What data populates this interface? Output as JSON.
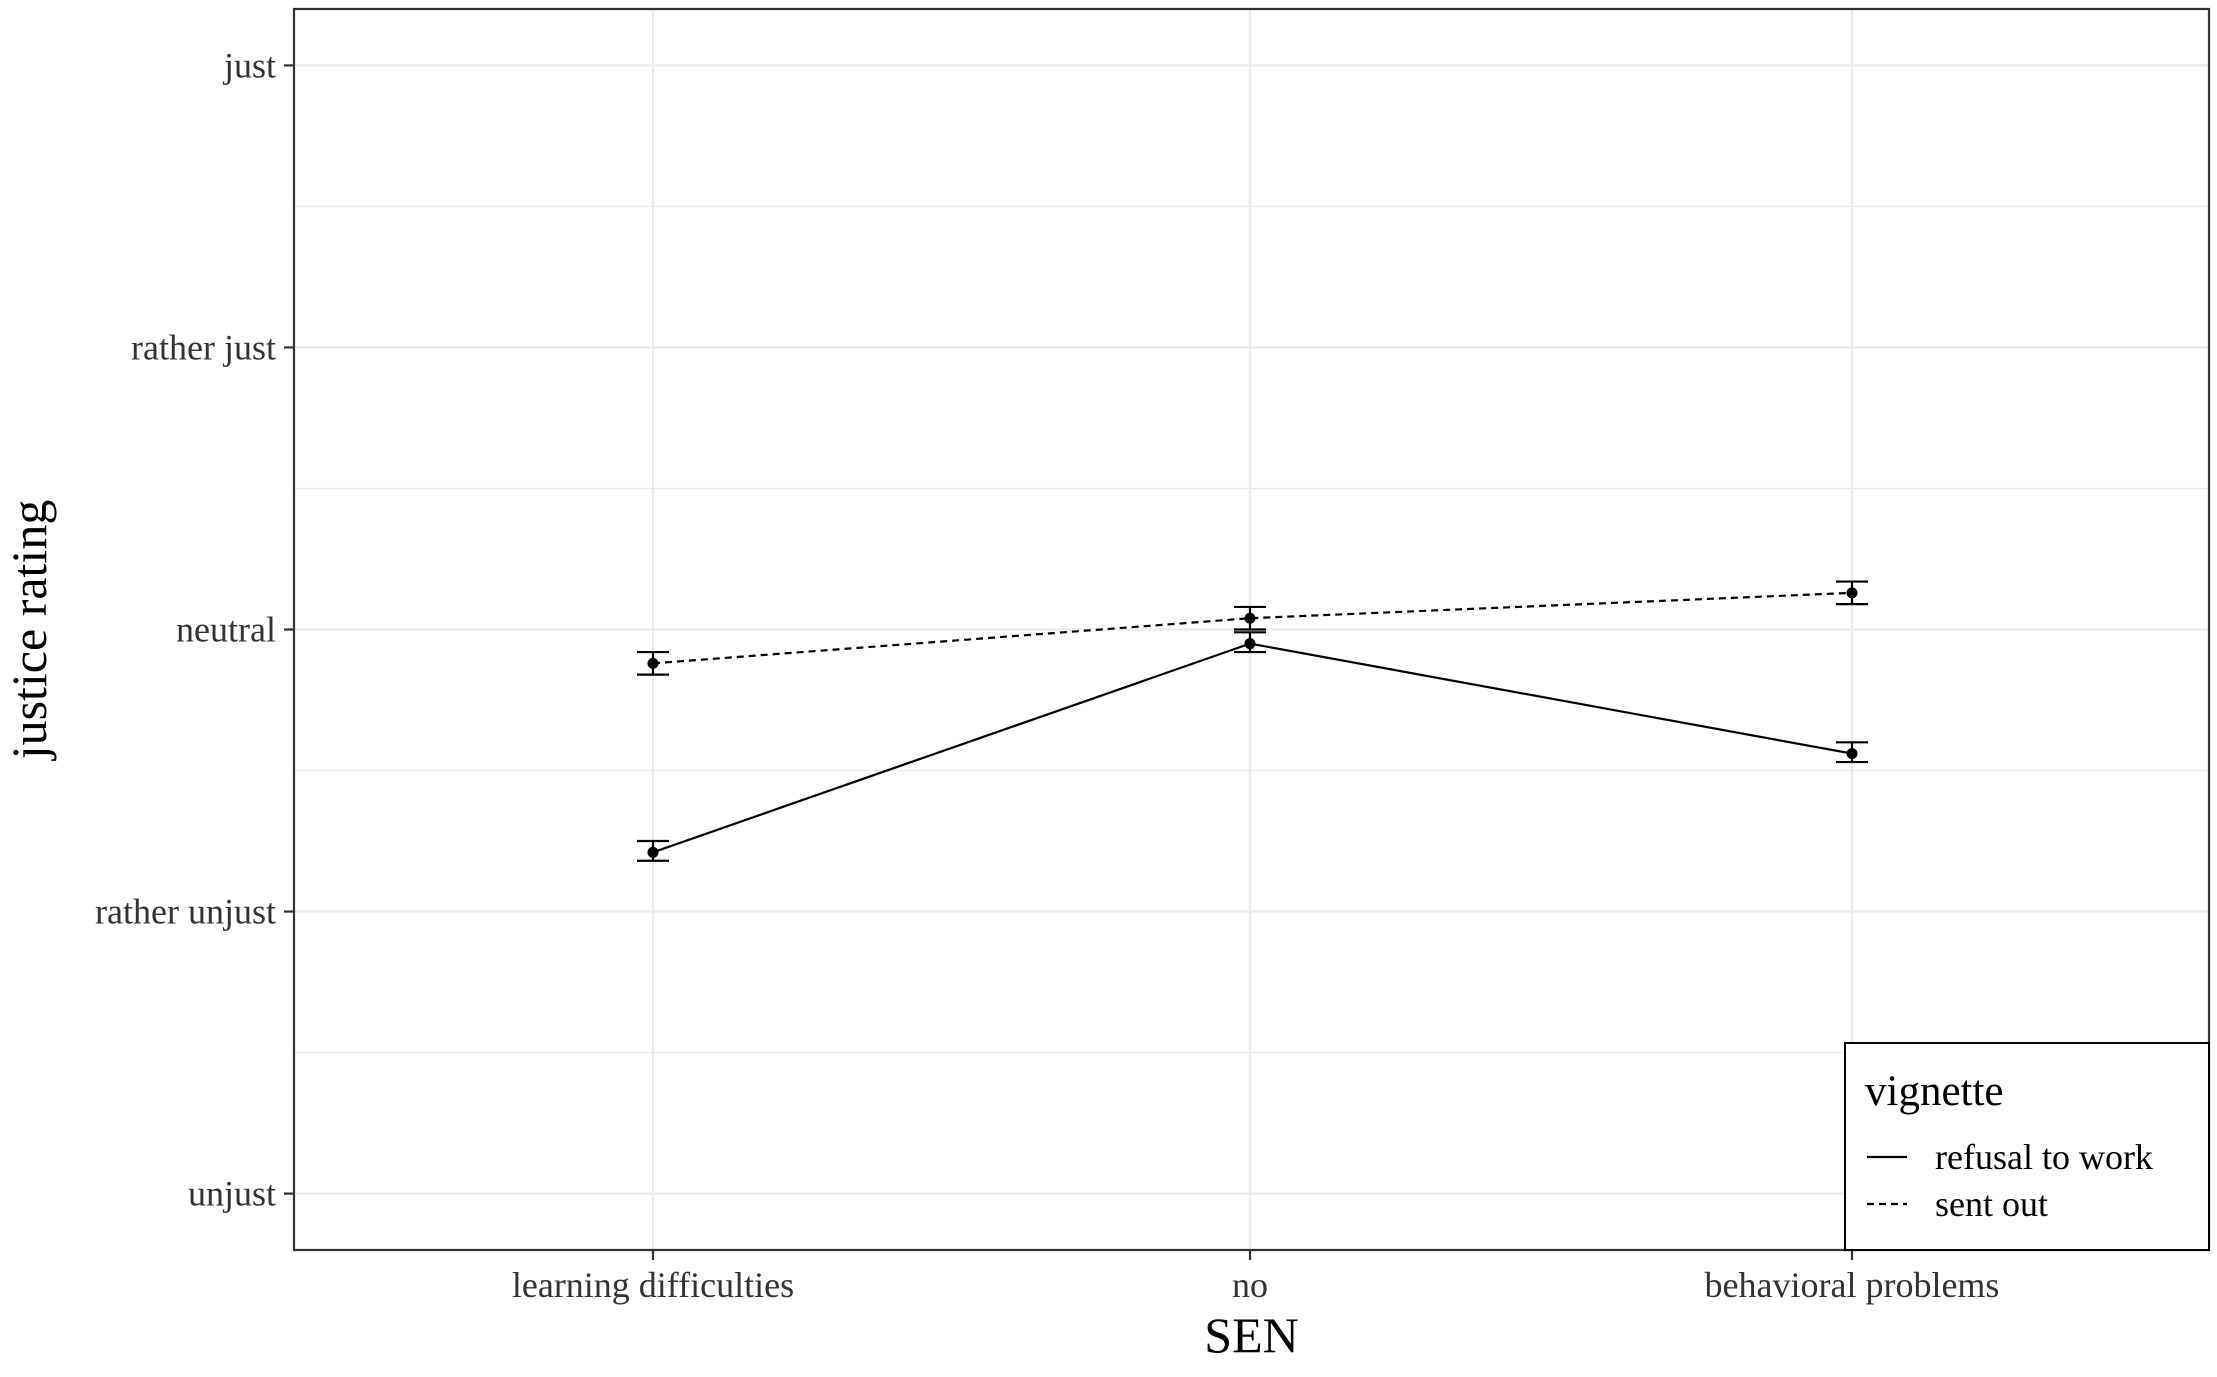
{
  "chart_data": {
    "type": "line",
    "xlabel": "SEN",
    "ylabel": "justice rating",
    "categories": [
      "learning difficulties",
      "no",
      "behavioral problems"
    ],
    "y_ticks": [
      {
        "value": 1,
        "label": "unjust"
      },
      {
        "value": 2,
        "label": "rather unjust"
      },
      {
        "value": 3,
        "label": "neutral"
      },
      {
        "value": 4,
        "label": "rather just"
      },
      {
        "value": 5,
        "label": "just"
      }
    ],
    "ylim": [
      0.8,
      5.2
    ],
    "grid": true,
    "legend": {
      "title": "vignette",
      "position": "bottom-right"
    },
    "series": [
      {
        "name": "refusal to work",
        "line_style": "solid",
        "values": [
          2.21,
          2.95,
          2.56
        ],
        "error_low": [
          2.18,
          2.92,
          2.53
        ],
        "error_high": [
          2.25,
          2.99,
          2.6
        ]
      },
      {
        "name": "sent out",
        "line_style": "dashed",
        "values": [
          2.88,
          3.04,
          3.13
        ],
        "error_low": [
          2.84,
          3.0,
          3.09
        ],
        "error_high": [
          2.92,
          3.08,
          3.17
        ]
      }
    ],
    "colors": {
      "series": "#000000",
      "grid": "#ebebeb",
      "panel_border": "#333333",
      "text": "#333333"
    }
  }
}
